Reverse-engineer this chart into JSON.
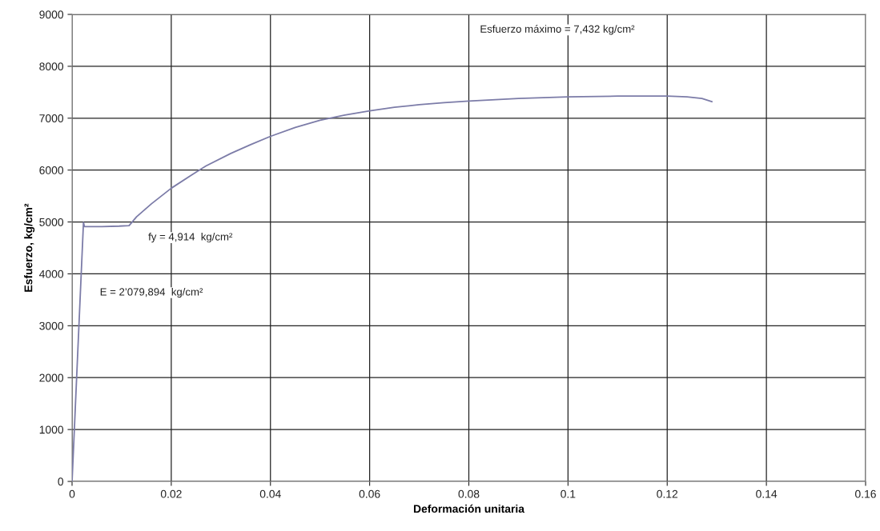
{
  "chart_data": {
    "type": "line",
    "xlabel": "Deformación unitaria",
    "ylabel": "Esfuerzo, kg/cm²",
    "xlim": [
      0,
      0.16
    ],
    "ylim": [
      0,
      9000
    ],
    "xticks": [
      0,
      0.02,
      0.04,
      0.06,
      0.08,
      0.1,
      0.12,
      0.14,
      0.16
    ],
    "yticks": [
      0,
      1000,
      2000,
      3000,
      4000,
      5000,
      6000,
      7000,
      8000,
      9000
    ],
    "grid": true,
    "marker": "none",
    "line_style": "solid",
    "series": [
      {
        "color": "#7c7ca8",
        "x": [
          0,
          0.0023,
          0.0025,
          0.006,
          0.0095,
          0.0115,
          0.013,
          0.016,
          0.02,
          0.024,
          0.027,
          0.032,
          0.036,
          0.04,
          0.045,
          0.05,
          0.055,
          0.06,
          0.065,
          0.07,
          0.075,
          0.08,
          0.09,
          0.1,
          0.11,
          0.12,
          0.124,
          0.127,
          0.129
        ],
        "values": [
          0,
          4990,
          4910,
          4910,
          4920,
          4930,
          5100,
          5350,
          5650,
          5900,
          6080,
          6320,
          6490,
          6650,
          6820,
          6960,
          7060,
          7140,
          7210,
          7260,
          7300,
          7330,
          7380,
          7410,
          7425,
          7425,
          7410,
          7380,
          7320
        ]
      }
    ],
    "annotations": [
      "Esfuerzo máximo = 7,432 kg/cm²",
      "fy = 4,914  kg/cm²",
      "E = 2’079,894  kg/cm²"
    ]
  }
}
